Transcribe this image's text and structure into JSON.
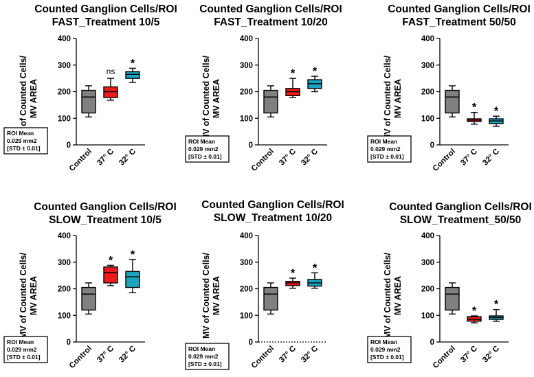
{
  "figure": {
    "ylabel_line1": "MV of Counted Cells/",
    "ylabel_line2": "MV AREA",
    "roi_note": [
      "ROI Mean",
      "0.029 mm2",
      "[STD ± 0.01]"
    ]
  },
  "colors": {
    "control": "#808080",
    "c37": "#ee1c1c",
    "c32": "#1ba3bf",
    "line": "#000000"
  },
  "chart_data": [
    {
      "type": "box",
      "title": "Counted Ganglion Cells/ROI",
      "subtitle": "FAST_Treatment 10/5",
      "ylim": [
        0,
        400
      ],
      "yticks": [
        0,
        100,
        200,
        300,
        400
      ],
      "categories": [
        "Control",
        "37° C",
        "32° C"
      ],
      "series": [
        {
          "name": "Control",
          "min": 105,
          "q1": 120,
          "median": 180,
          "q3": 205,
          "max": 222,
          "sig": ""
        },
        {
          "name": "37° C",
          "min": 168,
          "q1": 178,
          "median": 200,
          "q3": 218,
          "max": 250,
          "sig": "ns"
        },
        {
          "name": "32° C",
          "min": 235,
          "q1": 250,
          "median": 265,
          "q3": 275,
          "max": 288,
          "sig": "*"
        }
      ]
    },
    {
      "type": "box",
      "title": "Counted Ganglion Cells/ROI",
      "subtitle": "FAST_Treatment 10/20",
      "ylim": [
        0,
        400
      ],
      "yticks": [
        0,
        100,
        200,
        300,
        400
      ],
      "categories": [
        "Control",
        "37° C",
        "32° C"
      ],
      "series": [
        {
          "name": "Control",
          "min": 105,
          "q1": 120,
          "median": 180,
          "q3": 205,
          "max": 222,
          "sig": ""
        },
        {
          "name": "37° C",
          "min": 178,
          "q1": 185,
          "median": 200,
          "q3": 212,
          "max": 250,
          "sig": "*"
        },
        {
          "name": "32° C",
          "min": 200,
          "q1": 212,
          "median": 230,
          "q3": 245,
          "max": 258,
          "sig": "*"
        }
      ]
    },
    {
      "type": "box",
      "title": "Counted Ganglion Cells/ROI",
      "subtitle": "FAST_Treatment 50/50",
      "ylim": [
        0,
        400
      ],
      "yticks": [
        0,
        100,
        200,
        300,
        400
      ],
      "categories": [
        "Control",
        "37° C",
        "32° C"
      ],
      "series": [
        {
          "name": "Control",
          "min": 105,
          "q1": 120,
          "median": 180,
          "q3": 205,
          "max": 222,
          "sig": ""
        },
        {
          "name": "37° C",
          "min": 78,
          "q1": 88,
          "median": 93,
          "q3": 98,
          "max": 122,
          "sig": "*"
        },
        {
          "name": "32° C",
          "min": 70,
          "q1": 80,
          "median": 90,
          "q3": 98,
          "max": 108,
          "sig": "*"
        }
      ]
    },
    {
      "type": "box",
      "title": "Counted Ganglion Cells/ROI",
      "subtitle": "SLOW_Treatment 10/5",
      "ylim": [
        0,
        400
      ],
      "yticks": [
        0,
        100,
        200,
        300,
        400
      ],
      "categories": [
        "Control",
        "37° C",
        "32° C"
      ],
      "series": [
        {
          "name": "Control",
          "min": 105,
          "q1": 120,
          "median": 180,
          "q3": 205,
          "max": 222,
          "sig": ""
        },
        {
          "name": "37° C",
          "min": 212,
          "q1": 222,
          "median": 260,
          "q3": 282,
          "max": 288,
          "sig": "*"
        },
        {
          "name": "32° C",
          "min": 185,
          "q1": 205,
          "median": 245,
          "q3": 265,
          "max": 310,
          "sig": "*"
        }
      ]
    },
    {
      "type": "box",
      "title": "Counted Ganglion Cells/ROI",
      "subtitle": "SLOW_Treatment 10/20",
      "ylim": [
        0,
        400
      ],
      "yticks": [
        0,
        100,
        200,
        300,
        400
      ],
      "categories": [
        "Control",
        "37° C",
        "32° C"
      ],
      "series": [
        {
          "name": "Control",
          "min": 105,
          "q1": 120,
          "median": 180,
          "q3": 205,
          "max": 222,
          "sig": ""
        },
        {
          "name": "37° C",
          "min": 202,
          "q1": 212,
          "median": 222,
          "q3": 228,
          "max": 240,
          "sig": "*"
        },
        {
          "name": "32° C",
          "min": 202,
          "q1": 210,
          "median": 222,
          "q3": 235,
          "max": 260,
          "sig": "*"
        }
      ]
    },
    {
      "type": "box",
      "title": "Counted Ganglion Cells/ROI",
      "subtitle": "SLOW_Treatment_50/50",
      "ylim": [
        0,
        400
      ],
      "yticks": [
        0,
        100,
        200,
        300,
        400
      ],
      "categories": [
        "Control",
        "37° C",
        "32° C"
      ],
      "series": [
        {
          "name": "Control",
          "min": 105,
          "q1": 120,
          "median": 180,
          "q3": 205,
          "max": 222,
          "sig": ""
        },
        {
          "name": "37° C",
          "min": 72,
          "q1": 78,
          "median": 85,
          "q3": 95,
          "max": 98,
          "sig": "*"
        },
        {
          "name": "32° C",
          "min": 78,
          "q1": 85,
          "median": 92,
          "q3": 98,
          "max": 122,
          "sig": "*"
        }
      ]
    }
  ]
}
